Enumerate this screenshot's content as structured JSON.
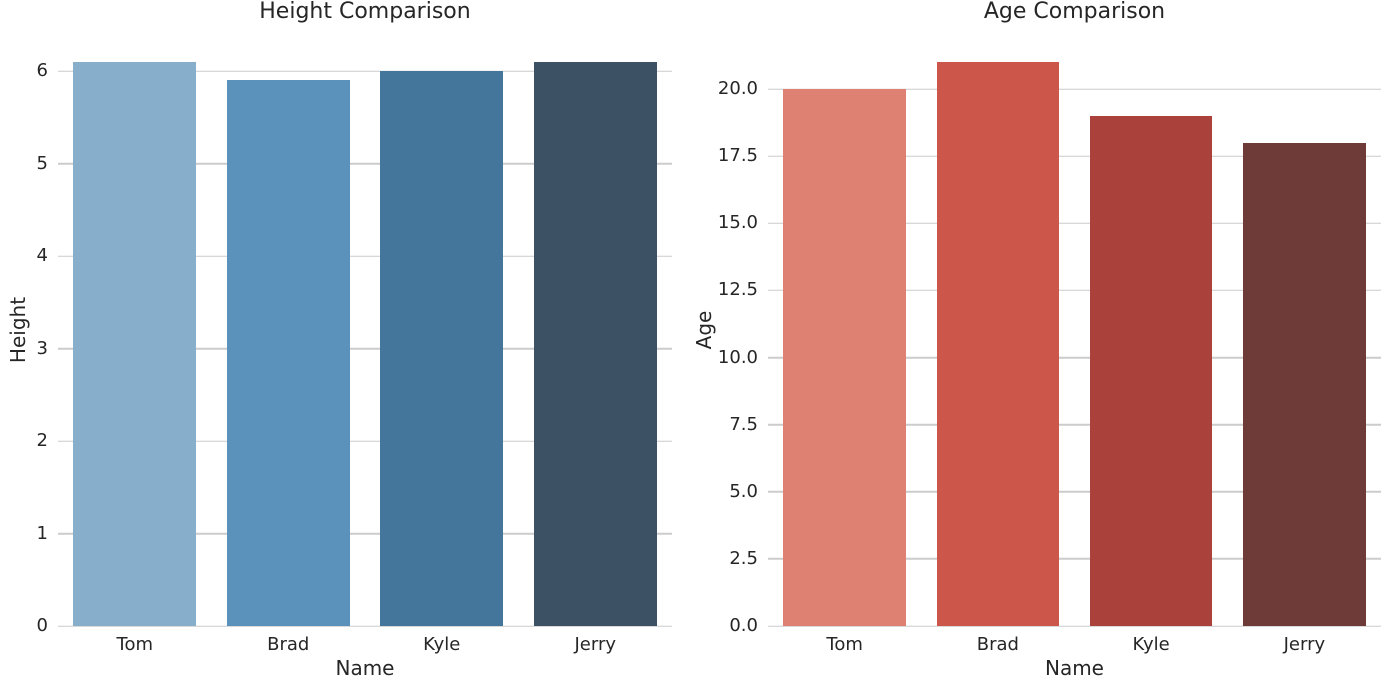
{
  "figure": {
    "background_color": "#ffffff",
    "text_color": "#262626",
    "grid_color": "#cccccc"
  },
  "chart_data": [
    {
      "type": "bar",
      "title": "Height Comparison",
      "xlabel": "Name",
      "ylabel": "Height",
      "categories": [
        "Tom",
        "Brad",
        "Kyle",
        "Jerry"
      ],
      "values": [
        6.1,
        5.9,
        6.0,
        6.1
      ],
      "bar_colors": [
        "#87aecb",
        "#5b92bb",
        "#44769b",
        "#3c5164"
      ],
      "ylim": [
        0,
        6.4
      ],
      "yticks": [
        0,
        1,
        2,
        3,
        4,
        5,
        6
      ],
      "ytick_labels": [
        "0",
        "1",
        "2",
        "3",
        "4",
        "5",
        "6"
      ],
      "grid": "horizontal",
      "legend": "none"
    },
    {
      "type": "bar",
      "title": "Age Comparison",
      "xlabel": "Name",
      "ylabel": "Age",
      "categories": [
        "Tom",
        "Brad",
        "Kyle",
        "Jerry"
      ],
      "values": [
        20,
        21,
        19,
        18
      ],
      "bar_colors": [
        "#df8172",
        "#cd564a",
        "#ab413b",
        "#6f3b38"
      ],
      "ylim": [
        0,
        22.05
      ],
      "yticks": [
        0,
        2.5,
        5,
        7.5,
        10,
        12.5,
        15,
        17.5,
        20
      ],
      "ytick_labels": [
        "0.0",
        "2.5",
        "5.0",
        "7.5",
        "10.0",
        "12.5",
        "15.0",
        "17.5",
        "20.0"
      ],
      "grid": "horizontal",
      "legend": "none"
    }
  ]
}
